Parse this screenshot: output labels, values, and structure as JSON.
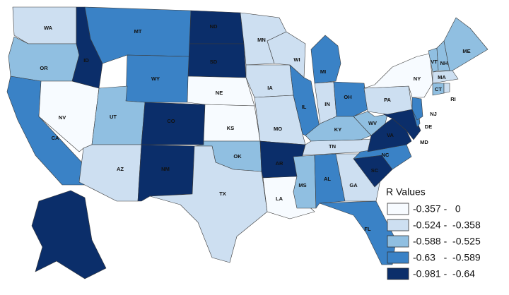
{
  "legend": {
    "title": "R Values",
    "classes": [
      {
        "label": "-0.357 -   0",
        "color": "#f7fbff"
      },
      {
        "label": "-0.524 -  -0.358",
        "color": "#cddff1"
      },
      {
        "label": "-0.588 -  -0.525",
        "color": "#90bfe1"
      },
      {
        "label": "-0.63   -  -0.589",
        "color": "#3a82c6"
      },
      {
        "label": "-0.981 -  -0.64",
        "color": "#0b2e6a"
      }
    ]
  },
  "states": [
    {
      "abbr": "WA",
      "class": 1
    },
    {
      "abbr": "OR",
      "class": 2
    },
    {
      "abbr": "CA",
      "class": 3
    },
    {
      "abbr": "NV",
      "class": 0
    },
    {
      "abbr": "ID",
      "class": 4
    },
    {
      "abbr": "MT",
      "class": 3
    },
    {
      "abbr": "WY",
      "class": 3
    },
    {
      "abbr": "UT",
      "class": 2
    },
    {
      "abbr": "AZ",
      "class": 1
    },
    {
      "abbr": "CO",
      "class": 4
    },
    {
      "abbr": "NM",
      "class": 4
    },
    {
      "abbr": "ND",
      "class": 4
    },
    {
      "abbr": "SD",
      "class": 4
    },
    {
      "abbr": "NE",
      "class": 0
    },
    {
      "abbr": "KS",
      "class": 0
    },
    {
      "abbr": "OK",
      "class": 2
    },
    {
      "abbr": "TX",
      "class": 1
    },
    {
      "abbr": "MN",
      "class": 1
    },
    {
      "abbr": "IA",
      "class": 1
    },
    {
      "abbr": "MO",
      "class": 1
    },
    {
      "abbr": "AR",
      "class": 4
    },
    {
      "abbr": "LA",
      "class": 0
    },
    {
      "abbr": "WI",
      "class": 1
    },
    {
      "abbr": "IL",
      "class": 3
    },
    {
      "abbr": "MI",
      "class": 3
    },
    {
      "abbr": "IN",
      "class": 1
    },
    {
      "abbr": "OH",
      "class": 3
    },
    {
      "abbr": "KY",
      "class": 2
    },
    {
      "abbr": "TN",
      "class": 1
    },
    {
      "abbr": "MS",
      "class": 2
    },
    {
      "abbr": "AL",
      "class": 3
    },
    {
      "abbr": "GA",
      "class": 1
    },
    {
      "abbr": "FL",
      "class": 3
    },
    {
      "abbr": "SC",
      "class": 4
    },
    {
      "abbr": "NC",
      "class": 3
    },
    {
      "abbr": "VA",
      "class": 4
    },
    {
      "abbr": "WV",
      "class": 2
    },
    {
      "abbr": "MD",
      "class": 4
    },
    {
      "abbr": "DE",
      "class": 3
    },
    {
      "abbr": "PA",
      "class": 1
    },
    {
      "abbr": "NJ",
      "class": 3
    },
    {
      "abbr": "NY",
      "class": 0
    },
    {
      "abbr": "CT",
      "class": 2
    },
    {
      "abbr": "RI",
      "class": 1
    },
    {
      "abbr": "MA",
      "class": 1
    },
    {
      "abbr": "VT",
      "class": 2
    },
    {
      "abbr": "NH",
      "class": 2
    },
    {
      "abbr": "ME",
      "class": 2
    },
    {
      "abbr": "AK",
      "class": 4,
      "hidden_label": true
    }
  ]
}
